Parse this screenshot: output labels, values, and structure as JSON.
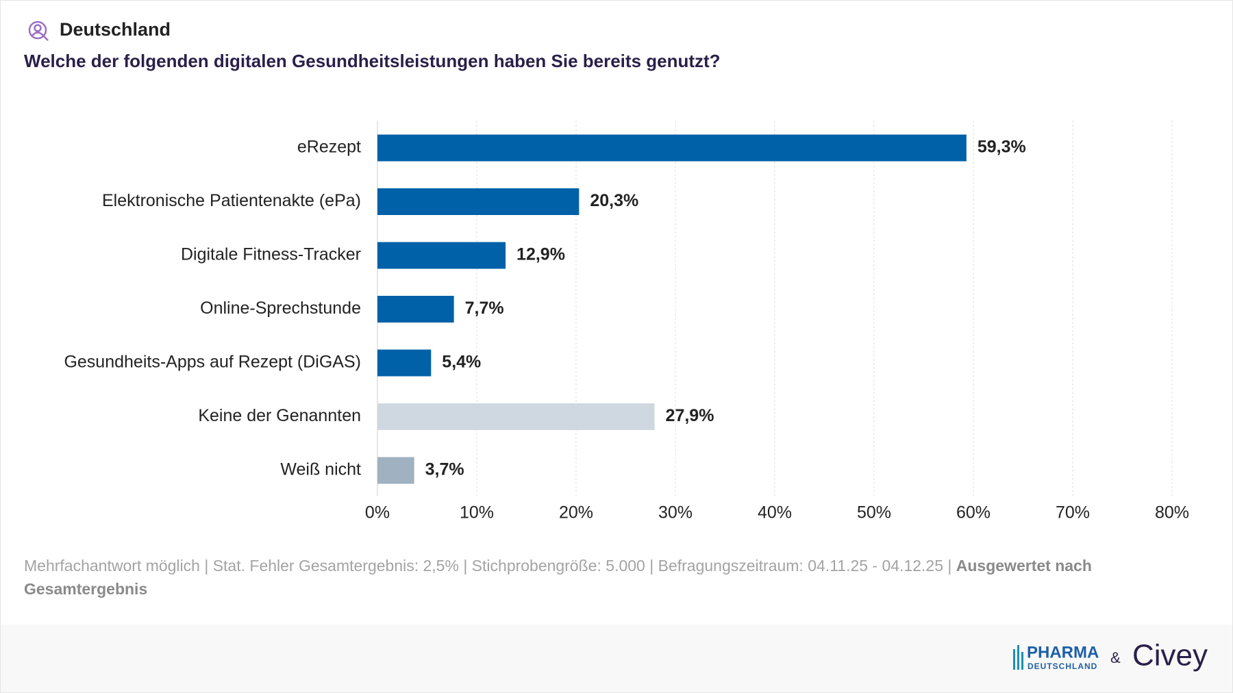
{
  "header": {
    "region": "Deutschland"
  },
  "chart_data": {
    "type": "hbar",
    "title": "Welche der folgenden digitalen Gesundheitsleistungen haben Sie bereits genutzt?",
    "categories": [
      "eRezept",
      "Elektronische Patientenakte (ePa)",
      "Digitale Fitness-Tracker",
      "Online-Sprechstunde",
      "Gesundheits-Apps auf Rezept (DiGAS)",
      "Keine der Genannten",
      "Weiß nicht"
    ],
    "values": [
      59.3,
      20.3,
      12.9,
      7.7,
      5.4,
      27.9,
      3.7
    ],
    "value_labels": [
      "59,3%",
      "20,3%",
      "12,9%",
      "7,7%",
      "5,4%",
      "27,9%",
      "3,7%"
    ],
    "colors": [
      "#0060a8",
      "#0060a8",
      "#0060a8",
      "#0060a8",
      "#0060a8",
      "#cfd8e0",
      "#a0b2c0"
    ],
    "xlim": [
      0,
      80
    ],
    "xticks": [
      {
        "value": 0,
        "label": "0%"
      },
      {
        "value": 10,
        "label": "10%"
      },
      {
        "value": 20,
        "label": "20%"
      },
      {
        "value": 30,
        "label": "30%"
      },
      {
        "value": 40,
        "label": "40%"
      },
      {
        "value": 50,
        "label": "50%"
      },
      {
        "value": 60,
        "label": "60%"
      },
      {
        "value": 70,
        "label": "70%"
      },
      {
        "value": 80,
        "label": "80%"
      }
    ],
    "grid": true
  },
  "footer": {
    "note": "Mehrfachantwort möglich | Stat. Fehler Gesamtergebnis: 2,5% | Stichprobengröße: 5.000 | Befragungszeitraum: 04.11.25 - 04.12.25 |",
    "emphasis": "Ausgewertet nach Gesamtergebnis"
  },
  "logos": {
    "partner": "PHARMA",
    "partner_sub": "DEUTSCHLAND",
    "joiner": "&",
    "brand": "Civey"
  }
}
